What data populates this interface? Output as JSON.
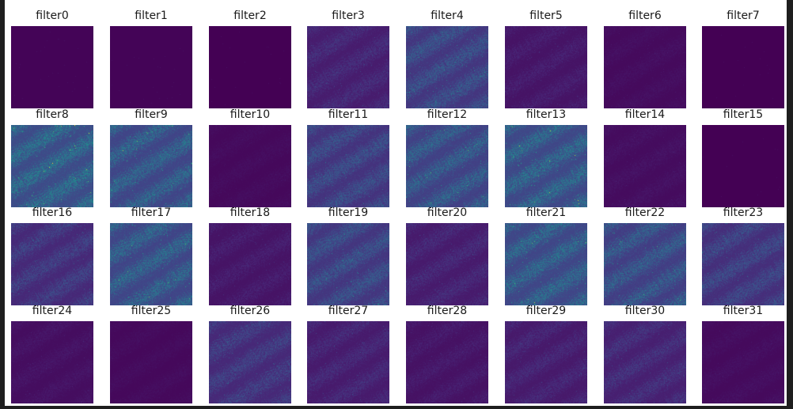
{
  "figure": {
    "panels": [
      {
        "title": "filter0",
        "level": 0.01
      },
      {
        "title": "filter1",
        "level": 0.01
      },
      {
        "title": "filter2",
        "level": 0.0
      },
      {
        "title": "filter3",
        "level": 0.18
      },
      {
        "title": "filter4",
        "level": 0.35
      },
      {
        "title": "filter5",
        "level": 0.12
      },
      {
        "title": "filter6",
        "level": 0.06
      },
      {
        "title": "filter7",
        "level": 0.0
      },
      {
        "title": "filter8",
        "level": 0.5
      },
      {
        "title": "filter9",
        "level": 0.45
      },
      {
        "title": "filter10",
        "level": 0.05
      },
      {
        "title": "filter11",
        "level": 0.33
      },
      {
        "title": "filter12",
        "level": 0.42
      },
      {
        "title": "filter13",
        "level": 0.47
      },
      {
        "title": "filter14",
        "level": 0.07
      },
      {
        "title": "filter15",
        "level": 0.0
      },
      {
        "title": "filter16",
        "level": 0.26
      },
      {
        "title": "filter17",
        "level": 0.45
      },
      {
        "title": "filter18",
        "level": 0.12
      },
      {
        "title": "filter19",
        "level": 0.35
      },
      {
        "title": "filter20",
        "level": 0.17
      },
      {
        "title": "filter21",
        "level": 0.46
      },
      {
        "title": "filter22",
        "level": 0.4
      },
      {
        "title": "filter23",
        "level": 0.3
      },
      {
        "title": "filter24",
        "level": 0.08
      },
      {
        "title": "filter25",
        "level": 0.05
      },
      {
        "title": "filter26",
        "level": 0.26
      },
      {
        "title": "filter27",
        "level": 0.17
      },
      {
        "title": "filter28",
        "level": 0.11
      },
      {
        "title": "filter29",
        "level": 0.16
      },
      {
        "title": "filter30",
        "level": 0.2
      },
      {
        "title": "filter31",
        "level": 0.06
      }
    ]
  }
}
